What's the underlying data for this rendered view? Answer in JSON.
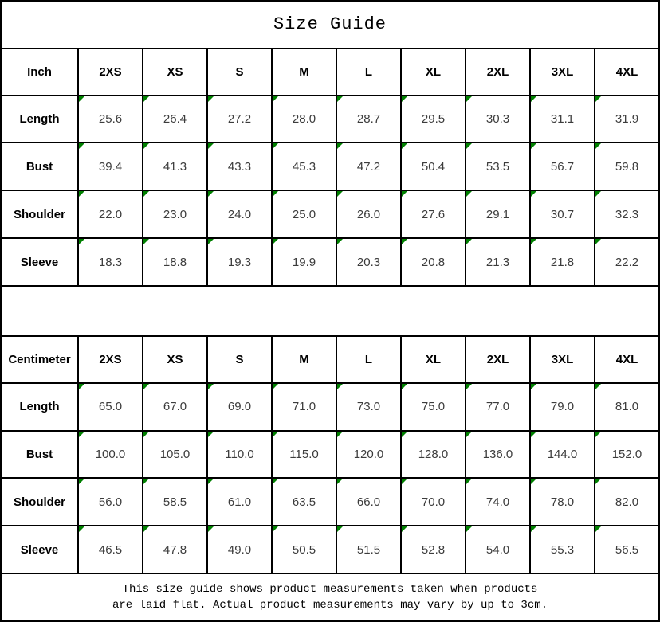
{
  "title": "Size Guide",
  "chart_data": [
    {
      "type": "table",
      "title": "Size Guide (Inch)",
      "columns": [
        "Inch",
        "2XS",
        "XS",
        "S",
        "M",
        "L",
        "XL",
        "2XL",
        "3XL",
        "4XL"
      ],
      "rows": [
        [
          "Length",
          "25.6",
          "26.4",
          "27.2",
          "28.0",
          "28.7",
          "29.5",
          "30.3",
          "31.1",
          "31.9"
        ],
        [
          "Bust",
          "39.4",
          "41.3",
          "43.3",
          "45.3",
          "47.2",
          "50.4",
          "53.5",
          "56.7",
          "59.8"
        ],
        [
          "Shoulder",
          "22.0",
          "23.0",
          "24.0",
          "25.0",
          "26.0",
          "27.6",
          "29.1",
          "30.7",
          "32.3"
        ],
        [
          "Sleeve",
          "18.3",
          "18.8",
          "19.3",
          "19.9",
          "20.3",
          "20.8",
          "21.3",
          "21.8",
          "22.2"
        ]
      ]
    },
    {
      "type": "table",
      "title": "Size Guide (Centimeter)",
      "columns": [
        "Centimeter",
        "2XS",
        "XS",
        "S",
        "M",
        "L",
        "XL",
        "2XL",
        "3XL",
        "4XL"
      ],
      "rows": [
        [
          "Length",
          "65.0",
          "67.0",
          "69.0",
          "71.0",
          "73.0",
          "75.0",
          "77.0",
          "79.0",
          "81.0"
        ],
        [
          "Bust",
          "100.0",
          "105.0",
          "110.0",
          "115.0",
          "120.0",
          "128.0",
          "136.0",
          "144.0",
          "152.0"
        ],
        [
          "Shoulder",
          "56.0",
          "58.5",
          "61.0",
          "63.5",
          "66.0",
          "70.0",
          "74.0",
          "78.0",
          "82.0"
        ],
        [
          "Sleeve",
          "46.5",
          "47.8",
          "49.0",
          "50.5",
          "51.5",
          "52.8",
          "54.0",
          "55.3",
          "56.5"
        ]
      ]
    }
  ],
  "footer": {
    "line1": "This size guide shows product measurements taken when products",
    "line2": "are laid flat. Actual product measurements may vary by up to 3cm."
  },
  "colors": {
    "border": "#000000",
    "flag_green": "#008000",
    "background": "#ffffff"
  }
}
